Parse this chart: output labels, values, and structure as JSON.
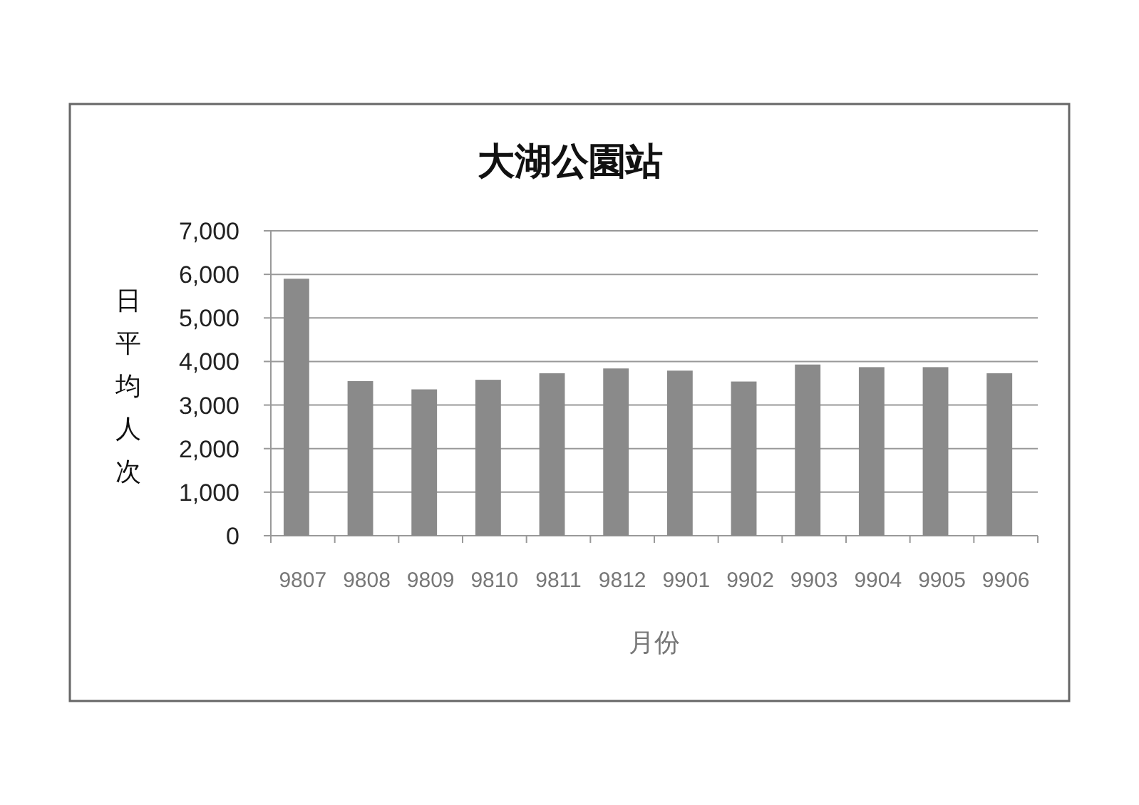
{
  "chart_data": {
    "type": "bar",
    "title": "大湖公園站",
    "xlabel": "月份",
    "ylabel": "日平均人次",
    "categories": [
      "9807",
      "9808",
      "9809",
      "9810",
      "9811",
      "9812",
      "9901",
      "9902",
      "9903",
      "9904",
      "9905",
      "9906"
    ],
    "values": [
      5900,
      3550,
      3360,
      3580,
      3730,
      3840,
      3790,
      3540,
      3930,
      3870,
      3870,
      3730
    ],
    "color": "#8a8a8a",
    "ylim": [
      0,
      7000
    ],
    "yticks": [
      {
        "value": 0,
        "label": "0"
      },
      {
        "value": 1000,
        "label": "1,000"
      },
      {
        "value": 2000,
        "label": "2,000"
      },
      {
        "value": 3000,
        "label": "3,000"
      },
      {
        "value": 4000,
        "label": "4,000"
      },
      {
        "value": 5000,
        "label": "5,000"
      },
      {
        "value": 6000,
        "label": "6,000"
      },
      {
        "value": 7000,
        "label": "7,000"
      }
    ],
    "grid": "y"
  }
}
